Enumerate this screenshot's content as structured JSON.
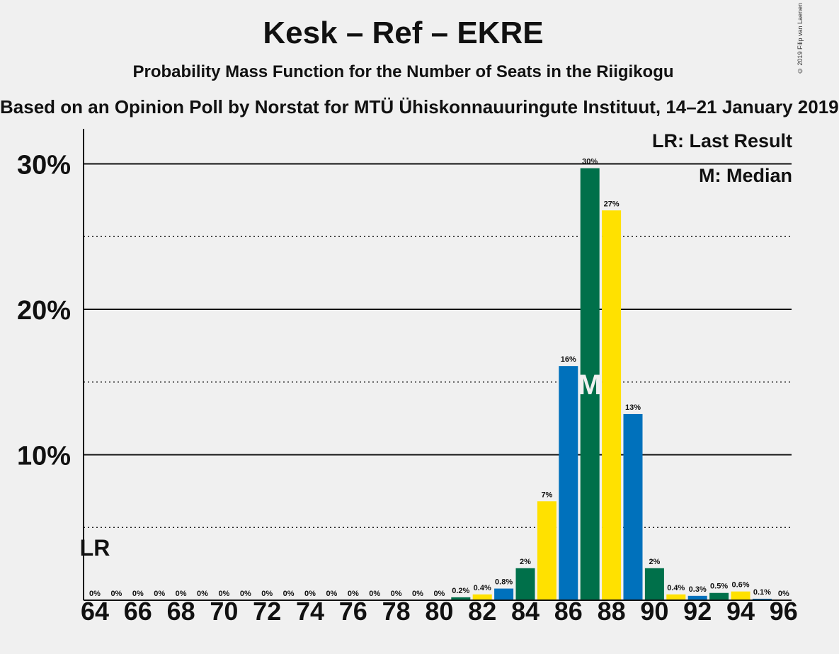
{
  "title": "Kesk – Ref – EKRE",
  "subtitle": "Probability Mass Function for the Number of Seats in the Riigikogu",
  "subsubtitle": "Based on an Opinion Poll by Norstat for MTÜ Ühiskonnauuringute Instituut, 14–21 January 2019",
  "copyright": "© 2019 Filip van Laenen",
  "legend": {
    "last_result": "LR: Last Result",
    "median": "M: Median"
  },
  "colors": {
    "green": "#00704a",
    "yellow": "#ffe100",
    "blue": "#0071bc",
    "background": "#f0f0f0"
  },
  "chart_data": {
    "type": "bar",
    "x": [
      64,
      65,
      66,
      67,
      68,
      69,
      70,
      71,
      72,
      73,
      74,
      75,
      76,
      77,
      78,
      79,
      80,
      81,
      82,
      83,
      84,
      85,
      86,
      87,
      88,
      89,
      90,
      91,
      92,
      93,
      94,
      95,
      96
    ],
    "values": [
      0,
      0,
      0,
      0,
      0,
      0,
      0,
      0,
      0,
      0,
      0,
      0,
      0,
      0,
      0,
      0,
      0,
      0.2,
      0.4,
      0.8,
      2.2,
      6.8,
      16.1,
      29.7,
      26.8,
      12.8,
      2.2,
      0.4,
      0.3,
      0.5,
      0.6,
      0.1,
      0
    ],
    "data_labels": [
      "0%",
      "0%",
      "0%",
      "0%",
      "0%",
      "0%",
      "0%",
      "0%",
      "0%",
      "0%",
      "0%",
      "0%",
      "0%",
      "0%",
      "0%",
      "0%",
      "0%",
      "0.2%",
      "0.4%",
      "0.8%",
      "2%",
      "7%",
      "16%",
      "30%",
      "27%",
      "13%",
      "2%",
      "0.4%",
      "0.3%",
      "0.5%",
      "0.6%",
      "0.1%",
      "0%"
    ],
    "bar_colors": [
      "yellow",
      "blue",
      "green",
      "yellow",
      "blue",
      "green",
      "yellow",
      "blue",
      "green",
      "yellow",
      "blue",
      "green",
      "yellow",
      "blue",
      "green",
      "yellow",
      "blue",
      "green",
      "yellow",
      "blue",
      "green",
      "yellow",
      "blue",
      "green",
      "yellow",
      "blue",
      "green",
      "yellow",
      "blue",
      "green",
      "yellow",
      "blue",
      "green"
    ],
    "x_ticks": [
      "64",
      "66",
      "68",
      "70",
      "72",
      "74",
      "76",
      "78",
      "80",
      "82",
      "84",
      "86",
      "88",
      "90",
      "92",
      "94",
      "96"
    ],
    "y_ticks": [
      "10%",
      "20%",
      "30%"
    ],
    "ylim": [
      0,
      32.5
    ],
    "solid_gridlines": [
      10,
      20,
      30
    ],
    "dotted_gridlines": [
      5,
      15,
      25
    ],
    "last_result": {
      "x": 64,
      "label": "LR"
    },
    "median": {
      "x": 87,
      "label": "M"
    }
  }
}
